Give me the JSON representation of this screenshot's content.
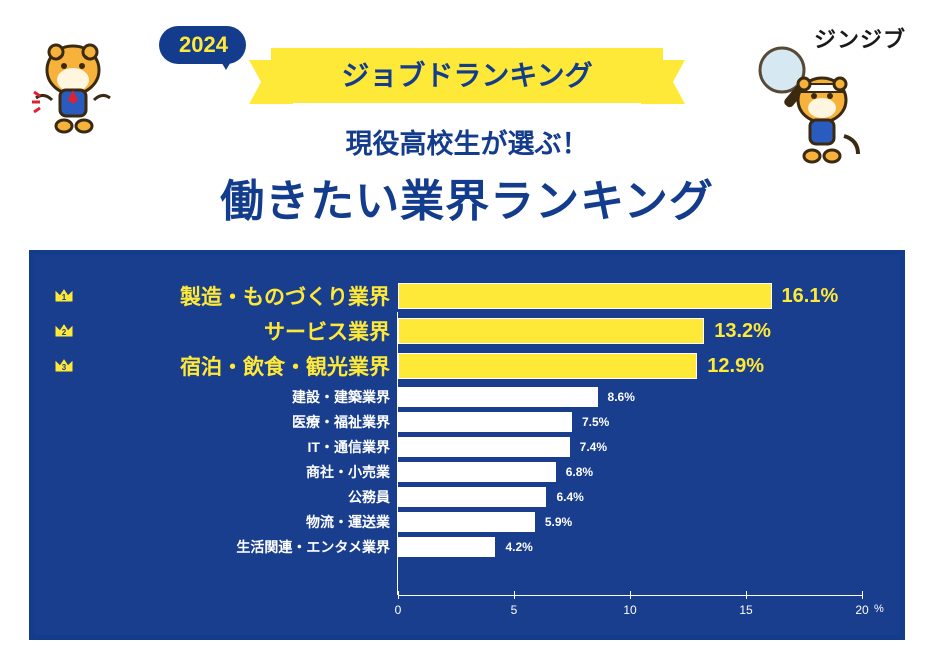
{
  "brand": "ジンジブ",
  "banner": {
    "year": "2024",
    "ribbon_text": "ジョブドランキング",
    "subtitle_pre": "現役高校生",
    "subtitle_post": "が選ぶ！",
    "title": "働きたい業界ランキング"
  },
  "colors": {
    "blue_dark": "#143c8c",
    "blue_panel": "#1a3e8e",
    "yellow": "#ffe938",
    "white": "#ffffff",
    "bg": "#ffffff"
  },
  "chart": {
    "type": "bar",
    "orientation": "horizontal",
    "xlim": [
      0,
      20
    ],
    "ticks": [
      0,
      5,
      10,
      15,
      20
    ],
    "axis_unit": "%",
    "top_bar_color": "#ffe938",
    "small_bar_color": "#ffffff",
    "top_label_color": "#ffe938",
    "top_value_color": "#ffe938",
    "items": [
      {
        "rank": 1,
        "label": "製造・ものづくり業界",
        "value": 16.1,
        "top": true
      },
      {
        "rank": 2,
        "label": "サービス業界",
        "value": 13.2,
        "top": true
      },
      {
        "rank": 3,
        "label": "宿泊・飲食・観光業界",
        "value": 12.9,
        "top": true
      },
      {
        "rank": 4,
        "label": "建設・建築業界",
        "value": 8.6,
        "top": false
      },
      {
        "rank": 5,
        "label": "医療・福祉業界",
        "value": 7.5,
        "top": false
      },
      {
        "rank": 6,
        "label": "IT・通信業界",
        "value": 7.4,
        "top": false
      },
      {
        "rank": 7,
        "label": "商社・小売業",
        "value": 6.8,
        "top": false
      },
      {
        "rank": 8,
        "label": "公務員",
        "value": 6.4,
        "top": false
      },
      {
        "rank": 9,
        "label": "物流・運送業",
        "value": 5.9,
        "top": false
      },
      {
        "rank": 10,
        "label": "生活関連・エンタメ業界",
        "value": 4.2,
        "top": false
      }
    ]
  }
}
